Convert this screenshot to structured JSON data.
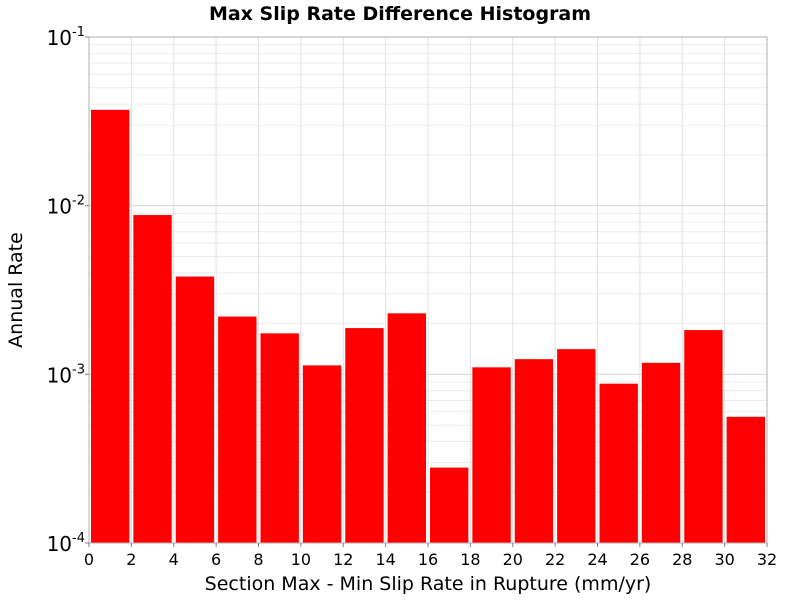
{
  "chart_data": {
    "type": "bar",
    "title": "Max Slip Rate Difference Histogram",
    "xlabel": "Section Max - Min Slip Rate in Rupture (mm/yr)",
    "ylabel": "Annual Rate",
    "y_scale": "log",
    "xlim": [
      0,
      32
    ],
    "ylim": [
      0.0001,
      0.1
    ],
    "x_ticks": [
      "0",
      "2",
      "4",
      "6",
      "8",
      "10",
      "12",
      "14",
      "16",
      "18",
      "20",
      "22",
      "24",
      "26",
      "28",
      "30",
      "32"
    ],
    "y_ticks": [
      {
        "base": "10",
        "exp": "-1",
        "value": 0.1
      },
      {
        "base": "10",
        "exp": "-2",
        "value": 0.01
      },
      {
        "base": "10",
        "exp": "-3",
        "value": 0.001
      },
      {
        "base": "10",
        "exp": "-4",
        "value": 0.0001
      }
    ],
    "grid": true,
    "bar_color": "#ff0000",
    "bins": [
      {
        "x0": 0,
        "x1": 2,
        "value": 0.037
      },
      {
        "x0": 2,
        "x1": 4,
        "value": 0.0088
      },
      {
        "x0": 4,
        "x1": 6,
        "value": 0.0038
      },
      {
        "x0": 6,
        "x1": 8,
        "value": 0.0022
      },
      {
        "x0": 8,
        "x1": 10,
        "value": 0.00175
      },
      {
        "x0": 10,
        "x1": 12,
        "value": 0.00113
      },
      {
        "x0": 12,
        "x1": 14,
        "value": 0.00188
      },
      {
        "x0": 14,
        "x1": 16,
        "value": 0.0023
      },
      {
        "x0": 16,
        "x1": 18,
        "value": 0.00028
      },
      {
        "x0": 18,
        "x1": 20,
        "value": 0.0011
      },
      {
        "x0": 20,
        "x1": 22,
        "value": 0.00123
      },
      {
        "x0": 22,
        "x1": 24,
        "value": 0.00141
      },
      {
        "x0": 24,
        "x1": 26,
        "value": 0.00088
      },
      {
        "x0": 26,
        "x1": 28,
        "value": 0.00117
      },
      {
        "x0": 28,
        "x1": 30,
        "value": 0.00183
      },
      {
        "x0": 30,
        "x1": 32,
        "value": 0.00056
      }
    ]
  }
}
